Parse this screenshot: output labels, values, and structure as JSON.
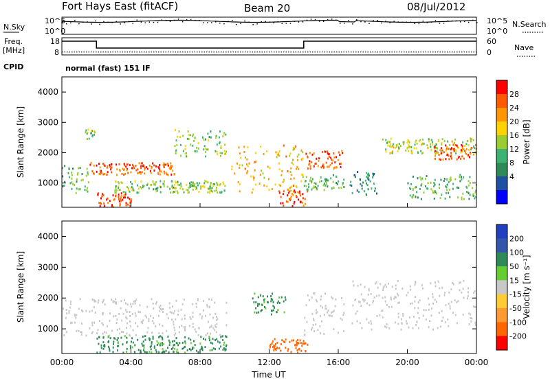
{
  "header": {
    "station": "Fort Hays East (fitACF)",
    "beam": "Beam 20",
    "date": "08/Jul/2012"
  },
  "noise_panel": {
    "left_label": "N.Sky",
    "right_label": "N.Search",
    "y_ticks": [
      "10^5",
      "10^0"
    ]
  },
  "freq_panel": {
    "left_label_1": "Freq.",
    "left_label_2": "[MHz]",
    "right_label": "Nave",
    "left_ticks": [
      "18",
      "8"
    ],
    "right_ticks": [
      "60",
      "0"
    ],
    "cpid_label": "CPID",
    "cpid_text": "normal (fast) 151 IF"
  },
  "power_colorbar": {
    "title": "Power [dB]",
    "ticks": [
      "28",
      "24",
      "20",
      "16",
      "12",
      "8",
      "4"
    ],
    "colors": [
      "#ff0000",
      "#ff5a00",
      "#ff9600",
      "#ffd200",
      "#9acd32",
      "#3cb371",
      "#2e8b57",
      "#1e4fa0",
      "#0000ff"
    ]
  },
  "velocity_colorbar": {
    "title": "Velocity [m s⁻¹]",
    "ticks": [
      "200",
      "100",
      "50",
      "15",
      "-15",
      "-50",
      "-100",
      "-200"
    ],
    "colors": [
      "#1f3fbf",
      "#3355aa",
      "#2e8b57",
      "#66cc33",
      "#c8c8c8",
      "#ffcc33",
      "#ff9933",
      "#ff6600",
      "#ff0000"
    ]
  },
  "chart_data": {
    "type": "heatmap",
    "x_axis": {
      "label": "Time UT",
      "ticks": [
        "00:00",
        "04:00",
        "08:00",
        "12:00",
        "16:00",
        "20:00",
        "00:00"
      ],
      "range_hours": [
        0,
        24
      ]
    },
    "y_axis": {
      "label": "Slant Range [km]",
      "ticks": [
        "4000",
        "3000",
        "2000",
        "1000"
      ],
      "range_km": [
        200,
        4500
      ]
    },
    "power_bands": [
      {
        "t0": 0.0,
        "t1": 1.6,
        "r0": 700,
        "r1": 1600,
        "db": 12
      },
      {
        "t0": 1.3,
        "t1": 1.9,
        "r0": 2400,
        "r1": 2800,
        "db": 14
      },
      {
        "t0": 1.6,
        "t1": 6.5,
        "r0": 1300,
        "r1": 1700,
        "db": 26
      },
      {
        "t0": 2.0,
        "t1": 4.0,
        "r0": 250,
        "r1": 700,
        "db": 28
      },
      {
        "t0": 3.0,
        "t1": 9.5,
        "r0": 700,
        "r1": 1100,
        "db": 14
      },
      {
        "t0": 6.5,
        "t1": 9.5,
        "r0": 1900,
        "r1": 2800,
        "db": 14
      },
      {
        "t0": 9.8,
        "t1": 14.0,
        "r0": 700,
        "r1": 2300,
        "db": 20
      },
      {
        "t0": 12.5,
        "t1": 14.2,
        "r0": 250,
        "r1": 800,
        "db": 28
      },
      {
        "t0": 14.0,
        "t1": 16.3,
        "r0": 1500,
        "r1": 2100,
        "db": 26
      },
      {
        "t0": 14.0,
        "t1": 16.3,
        "r0": 800,
        "r1": 1300,
        "db": 12
      },
      {
        "t0": 16.6,
        "t1": 18.2,
        "r0": 600,
        "r1": 1400,
        "db": 8
      },
      {
        "t0": 18.5,
        "t1": 24.0,
        "r0": 2000,
        "r1": 2500,
        "db": 16
      },
      {
        "t0": 21.5,
        "t1": 24.0,
        "r0": 1800,
        "r1": 2300,
        "db": 26
      },
      {
        "t0": 20.0,
        "t1": 24.0,
        "r0": 500,
        "r1": 1300,
        "db": 12
      }
    ],
    "velocity_bands": [
      {
        "t0": 0.0,
        "t1": 9.5,
        "r0": 800,
        "r1": 2000,
        "v": 0
      },
      {
        "t0": 2.0,
        "t1": 9.5,
        "r0": 250,
        "r1": 800,
        "v": 40
      },
      {
        "t0": 11.0,
        "t1": 13.0,
        "r0": 1500,
        "r1": 2200,
        "v": 40
      },
      {
        "t0": 14.0,
        "t1": 16.3,
        "r0": 800,
        "r1": 2200,
        "v": 0
      },
      {
        "t0": 16.6,
        "t1": 24.0,
        "r0": 1000,
        "r1": 2600,
        "v": 0
      },
      {
        "t0": 12.0,
        "t1": 14.2,
        "r0": 250,
        "r1": 700,
        "v": -120
      }
    ],
    "freq_mhz_segments": [
      {
        "t0": 0,
        "t1": 2,
        "value": 16
      },
      {
        "t0": 2,
        "t1": 14,
        "value": 12
      },
      {
        "t0": 14,
        "t1": 24,
        "value": 16
      }
    ],
    "nave_level": 10
  }
}
